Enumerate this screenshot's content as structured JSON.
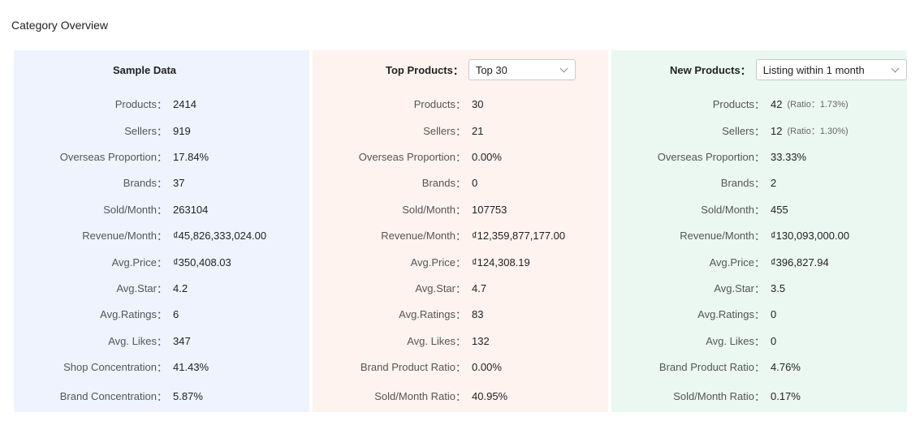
{
  "page_title": "Category Overview",
  "panels": {
    "sample": {
      "title": "Sample Data",
      "rows": [
        {
          "label": "Products",
          "value": "2414"
        },
        {
          "label": "Sellers",
          "value": "919"
        },
        {
          "label": "Overseas Proportion",
          "value": "17.84%"
        },
        {
          "label": "Brands",
          "value": "37"
        },
        {
          "label": "Sold/Month",
          "value": "263104"
        },
        {
          "label": "Revenue/Month",
          "value": "₫45,826,333,024.00"
        },
        {
          "label": "Avg.Price",
          "value": "₫350,408.03"
        },
        {
          "label": "Avg.Star",
          "value": "4.2"
        },
        {
          "label": "Avg.Ratings",
          "value": "6"
        },
        {
          "label": "Avg. Likes",
          "value": "347"
        },
        {
          "label": "Shop Concentration",
          "value": "41.43%"
        },
        {
          "label": "Brand Concentration",
          "value": "5.87%"
        }
      ]
    },
    "top": {
      "label": "Top Products",
      "select_value": "Top 30",
      "rows": [
        {
          "label": "Products",
          "value": "30"
        },
        {
          "label": "Sellers",
          "value": "21"
        },
        {
          "label": "Overseas Proportion",
          "value": "0.00%"
        },
        {
          "label": "Brands",
          "value": "0"
        },
        {
          "label": "Sold/Month",
          "value": "107753"
        },
        {
          "label": "Revenue/Month",
          "value": "₫12,359,877,177.00"
        },
        {
          "label": "Avg.Price",
          "value": "₫124,308.19"
        },
        {
          "label": "Avg.Star",
          "value": "4.7"
        },
        {
          "label": "Avg.Ratings",
          "value": "83"
        },
        {
          "label": "Avg. Likes",
          "value": "132"
        },
        {
          "label": "Brand Product Ratio",
          "value": "0.00%"
        },
        {
          "label": "Sold/Month Ratio",
          "value": "40.95%"
        }
      ]
    },
    "new": {
      "label": "New Products",
      "select_value": "Listing within 1 month",
      "rows": [
        {
          "label": "Products",
          "value": "42",
          "ratio": "(Ratio：1.73%)"
        },
        {
          "label": "Sellers",
          "value": "12",
          "ratio": "(Ratio：1.30%)"
        },
        {
          "label": "Overseas Proportion",
          "value": "33.33%"
        },
        {
          "label": "Brands",
          "value": "2"
        },
        {
          "label": "Sold/Month",
          "value": "455"
        },
        {
          "label": "Revenue/Month",
          "value": "₫130,093,000.00"
        },
        {
          "label": "Avg.Price",
          "value": "₫396,827.94"
        },
        {
          "label": "Avg.Star",
          "value": "3.5"
        },
        {
          "label": "Avg.Ratings",
          "value": "0"
        },
        {
          "label": "Avg. Likes",
          "value": "0"
        },
        {
          "label": "Brand Product Ratio",
          "value": "4.76%"
        },
        {
          "label": "Sold/Month Ratio",
          "value": "0.17%"
        }
      ]
    }
  },
  "colon": "："
}
